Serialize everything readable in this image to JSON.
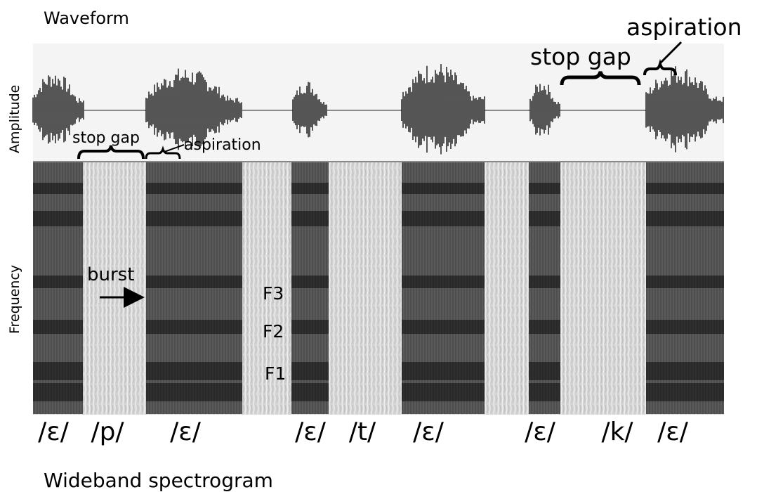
{
  "titles": {
    "waveform": "Waveform",
    "spectrogram": "Wideband spectrogram"
  },
  "axes": {
    "waveform_ylabel": "Amplitude",
    "spectrogram_ylabel": "Frequency"
  },
  "annotations": {
    "stop_gap_p": "stop gap",
    "aspiration_p": "aspiration",
    "stop_gap_k": "stop gap",
    "aspiration_k": "aspiration",
    "burst": "burst",
    "formants": [
      "F3",
      "F2",
      "F1"
    ]
  },
  "segments": [
    "/ɛ/",
    "/p/",
    "/ɛ/",
    "/ɛ/",
    "/t/",
    "/ɛ/",
    "/ɛ/",
    "/k/",
    "/ɛ/"
  ],
  "colors": {
    "ink": "#000000",
    "spectrogram_dark": "#1c1c1c",
    "spectrogram_light": "#d6d6d6",
    "flat_line": "#666666"
  }
}
